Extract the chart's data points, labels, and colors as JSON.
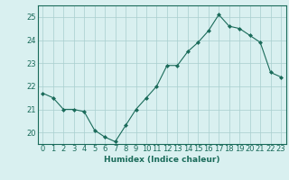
{
  "x": [
    0,
    1,
    2,
    3,
    4,
    5,
    6,
    7,
    8,
    9,
    10,
    11,
    12,
    13,
    14,
    15,
    16,
    17,
    18,
    19,
    20,
    21,
    22,
    23
  ],
  "y": [
    21.7,
    21.5,
    21.0,
    21.0,
    20.9,
    20.1,
    19.8,
    19.6,
    20.3,
    21.0,
    21.5,
    22.0,
    22.9,
    22.9,
    23.5,
    23.9,
    24.4,
    25.1,
    24.6,
    24.5,
    24.2,
    23.9,
    22.6,
    22.4
  ],
  "line_color": "#1a6b5a",
  "marker": "D",
  "marker_size": 2,
  "bg_color": "#d9f0f0",
  "grid_color": "#a8cece",
  "xlabel": "Humidex (Indice chaleur)",
  "ylim": [
    19.5,
    25.5
  ],
  "xlim": [
    -0.5,
    23.5
  ],
  "yticks": [
    20,
    21,
    22,
    23,
    24,
    25
  ],
  "xticks": [
    0,
    1,
    2,
    3,
    4,
    5,
    6,
    7,
    8,
    9,
    10,
    11,
    12,
    13,
    14,
    15,
    16,
    17,
    18,
    19,
    20,
    21,
    22,
    23
  ],
  "xlabel_fontsize": 6.5,
  "tick_fontsize": 6.0,
  "linewidth": 0.8
}
